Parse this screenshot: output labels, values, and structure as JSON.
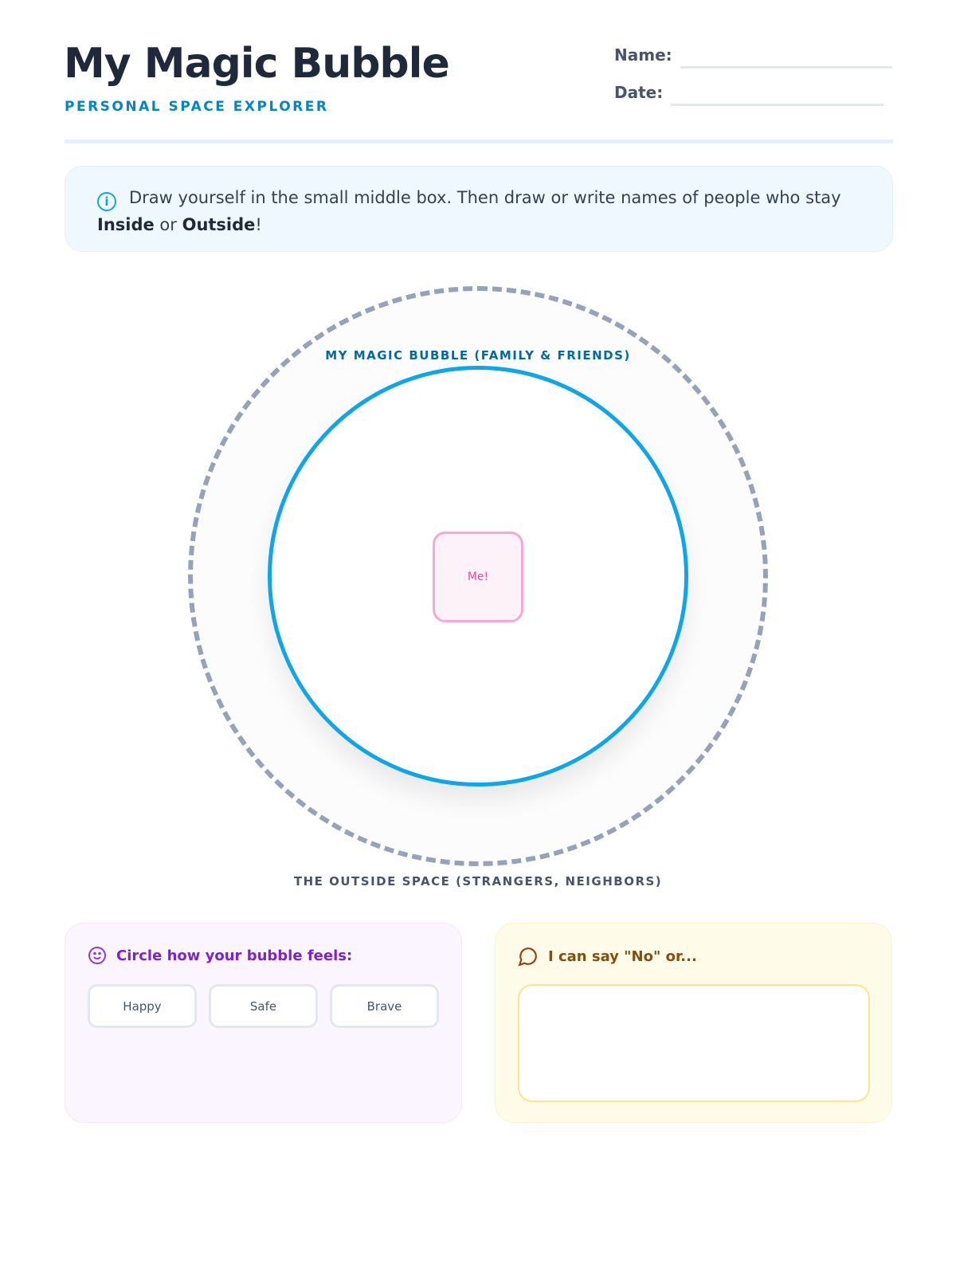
{
  "header": {
    "title": "My Magic Bubble",
    "subtitle": "PERSONAL SPACE EXPLORER",
    "name_label": "Name:",
    "date_label": "Date:"
  },
  "info": {
    "icon": "info-icon",
    "text": "Draw yourself in the small middle box. Then draw or write names of people who stay",
    "inside": "Inside",
    "or": " or ",
    "outside": "Outside",
    "end": "!"
  },
  "diagram": {
    "inner_label": "MY MAGIC BUBBLE (FAMILY & FRIENDS)",
    "outer_label": "THE OUTSIDE SPACE (STRANGERS, NEIGHBORS)",
    "me_label": "Me!",
    "colors": {
      "inner": "#0ea5e9",
      "outer": "#94a3b8",
      "me": "#ec4899"
    }
  },
  "feelings": {
    "icon": "smiley-icon",
    "title": "Circle how your bubble feels:",
    "options": [
      "Happy",
      "Safe",
      "Brave"
    ]
  },
  "say_no": {
    "icon": "speech-bubble-icon",
    "title": "I can say \"No\" or..."
  }
}
